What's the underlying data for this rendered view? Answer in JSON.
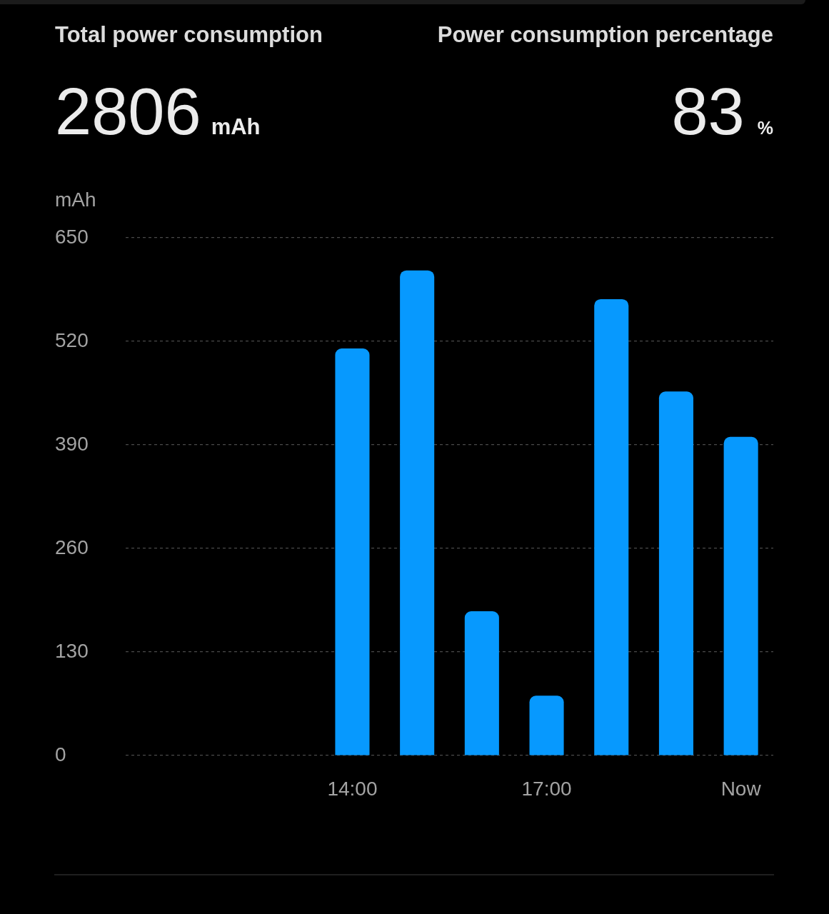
{
  "chart_data": {
    "type": "bar",
    "ylabel": "mAh",
    "annotations": [
      "Total power consumption",
      "2806",
      "mAh",
      "Power consumption percentage",
      "83",
      "%"
    ],
    "categories": [
      null,
      null,
      null,
      "14:00",
      null,
      null,
      "17:00",
      null,
      null,
      "Now"
    ],
    "values": [
      null,
      null,
      null,
      511,
      609,
      181,
      75,
      573,
      457,
      400
    ],
    "color": "#0799fe",
    "ylim": [
      0,
      650
    ],
    "yticks": [
      0,
      130,
      260,
      390,
      520,
      650
    ],
    "grid": "y"
  }
}
